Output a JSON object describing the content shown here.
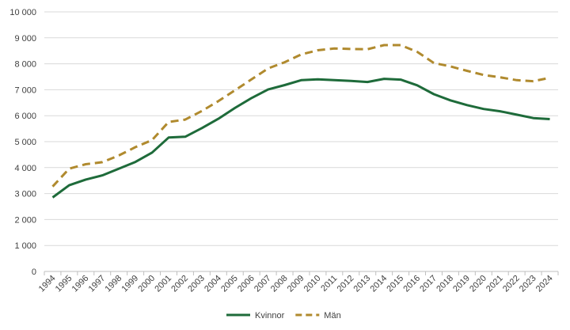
{
  "chart_data": {
    "type": "line",
    "x": [
      "1994",
      "1995",
      "1996",
      "1997",
      "1998",
      "1999",
      "2000",
      "2001",
      "2002",
      "2003",
      "2004",
      "2005",
      "2006",
      "2007",
      "2008",
      "2009",
      "2010",
      "2011",
      "2012",
      "2013",
      "2014",
      "2015",
      "2016",
      "2017",
      "2018",
      "2019",
      "2020",
      "2021",
      "2022",
      "2023",
      "2024"
    ],
    "series": [
      {
        "name": "Kvinnor",
        "color": "#1e6b3a",
        "dash": "solid",
        "values": [
          2850,
          3320,
          3540,
          3700,
          3960,
          4220,
          4580,
          5160,
          5190,
          5520,
          5880,
          6300,
          6680,
          7010,
          7180,
          7370,
          7400,
          7370,
          7340,
          7300,
          7420,
          7390,
          7170,
          6830,
          6590,
          6410,
          6260,
          6170,
          6040,
          5910,
          5870
        ]
      },
      {
        "name": "Män",
        "color": "#b08a2e",
        "dash": "dashed",
        "values": [
          3270,
          3960,
          4130,
          4210,
          4470,
          4790,
          5060,
          5760,
          5850,
          6180,
          6560,
          6980,
          7400,
          7820,
          8060,
          8360,
          8520,
          8590,
          8570,
          8560,
          8720,
          8720,
          8460,
          8030,
          7900,
          7730,
          7570,
          7480,
          7370,
          7330,
          7460
        ]
      }
    ],
    "y_ticks": [
      "0",
      "1 000",
      "2 000",
      "3 000",
      "4 000",
      "5 000",
      "6 000",
      "7 000",
      "8 000",
      "9 000",
      "10 000"
    ],
    "ylim": [
      0,
      10000
    ],
    "grid": true,
    "legend_position": "bottom-center",
    "title": "",
    "xlabel": "",
    "ylabel": ""
  }
}
